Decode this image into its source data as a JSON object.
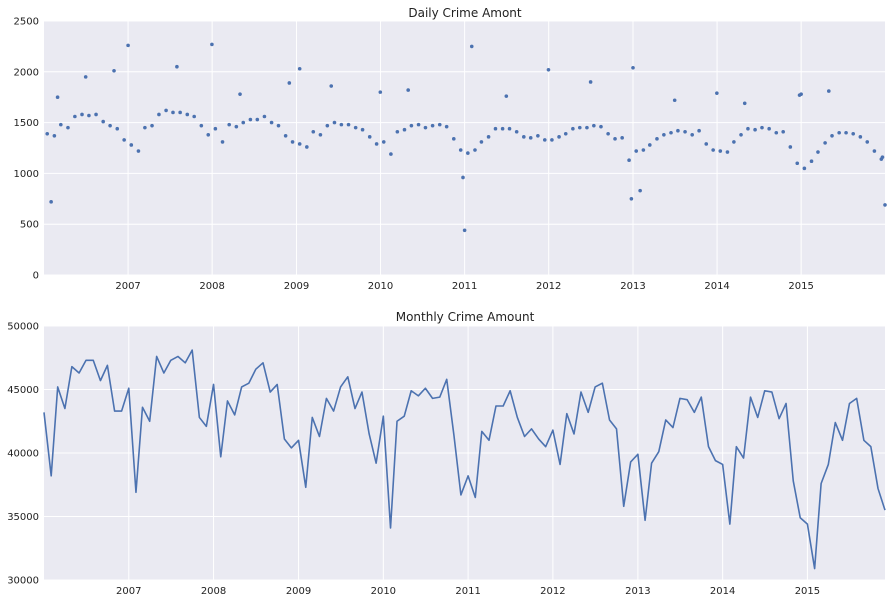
{
  "chart_data": [
    {
      "type": "scatter",
      "title": "Daily Crime Amont",
      "xlabel": "",
      "ylabel": "",
      "xlim": [
        "2006-01-01",
        "2015-12-31"
      ],
      "ylim": [
        0,
        2500
      ],
      "yticks": [
        0,
        500,
        1000,
        1500,
        2000,
        2500
      ],
      "xtick_labels": [
        "2007",
        "2008",
        "2009",
        "2010",
        "2011",
        "2012",
        "2013",
        "2014",
        "2015"
      ],
      "grid": true,
      "point_color": "#4c72b0",
      "x": [
        "2006-01-15",
        "2006-02-15",
        "2006-03-15",
        "2006-04-15",
        "2006-05-15",
        "2006-06-15",
        "2006-07-15",
        "2006-08-15",
        "2006-09-15",
        "2006-10-15",
        "2006-11-15",
        "2006-12-15",
        "2007-01-15",
        "2007-02-15",
        "2007-03-15",
        "2007-04-15",
        "2007-05-15",
        "2007-06-15",
        "2007-07-15",
        "2007-08-15",
        "2007-09-15",
        "2007-10-15",
        "2007-11-15",
        "2007-12-15",
        "2008-01-15",
        "2008-02-15",
        "2008-03-15",
        "2008-04-15",
        "2008-05-15",
        "2008-06-15",
        "2008-07-15",
        "2008-08-15",
        "2008-09-15",
        "2008-10-15",
        "2008-11-15",
        "2008-12-15",
        "2009-01-15",
        "2009-02-15",
        "2009-03-15",
        "2009-04-15",
        "2009-05-15",
        "2009-06-15",
        "2009-07-15",
        "2009-08-15",
        "2009-09-15",
        "2009-10-15",
        "2009-11-15",
        "2009-12-15",
        "2010-01-15",
        "2010-02-15",
        "2010-03-15",
        "2010-04-15",
        "2010-05-15",
        "2010-06-15",
        "2010-07-15",
        "2010-08-15",
        "2010-09-15",
        "2010-10-15",
        "2010-11-15",
        "2010-12-15",
        "2011-01-15",
        "2011-02-15",
        "2011-03-15",
        "2011-04-15",
        "2011-05-15",
        "2011-06-15",
        "2011-07-15",
        "2011-08-15",
        "2011-09-15",
        "2011-10-15",
        "2011-11-15",
        "2011-12-15",
        "2012-01-15",
        "2012-02-15",
        "2012-03-15",
        "2012-04-15",
        "2012-05-15",
        "2012-06-15",
        "2012-07-15",
        "2012-08-15",
        "2012-09-15",
        "2012-10-15",
        "2012-11-15",
        "2012-12-15",
        "2013-01-15",
        "2013-02-15",
        "2013-03-15",
        "2013-04-15",
        "2013-05-15",
        "2013-06-15",
        "2013-07-15",
        "2013-08-15",
        "2013-09-15",
        "2013-10-15",
        "2013-11-15",
        "2013-12-15",
        "2014-01-15",
        "2014-02-15",
        "2014-03-15",
        "2014-04-15",
        "2014-05-15",
        "2014-06-15",
        "2014-07-15",
        "2014-08-15",
        "2014-09-15",
        "2014-10-15",
        "2014-11-15",
        "2014-12-15",
        "2015-01-15",
        "2015-02-15",
        "2015-03-15",
        "2015-04-15",
        "2015-05-15",
        "2015-06-15",
        "2015-07-15",
        "2015-08-15",
        "2015-09-15",
        "2015-10-15",
        "2015-11-15",
        "2015-12-15",
        "2006-03-01",
        "2006-07-01",
        "2006-11-01",
        "2007-01-01",
        "2007-08-01",
        "2007-12-31",
        "2008-05-01",
        "2008-12-01",
        "2009-01-15",
        "2009-06-01",
        "2009-12-31",
        "2010-05-01",
        "2010-12-25",
        "2011-01-01",
        "2011-02-01",
        "2011-07-01",
        "2011-12-31",
        "2012-07-01",
        "2012-12-25",
        "2013-01-01",
        "2013-02-01",
        "2013-07-01",
        "2013-12-31",
        "2014-05-01",
        "2014-12-25",
        "2015-01-01",
        "2015-05-01",
        "2015-12-20",
        "2015-12-31",
        "2006-02-01"
      ],
      "y": [
        1390,
        1370,
        1480,
        1450,
        1560,
        1580,
        1570,
        1580,
        1510,
        1470,
        1440,
        1330,
        1280,
        1220,
        1450,
        1470,
        1580,
        1620,
        1600,
        1600,
        1580,
        1560,
        1470,
        1380,
        1440,
        1310,
        1480,
        1460,
        1500,
        1530,
        1530,
        1560,
        1500,
        1470,
        1370,
        1310,
        1290,
        1260,
        1410,
        1380,
        1470,
        1500,
        1480,
        1480,
        1450,
        1430,
        1360,
        1290,
        1310,
        1190,
        1410,
        1430,
        1470,
        1480,
        1450,
        1470,
        1480,
        1460,
        1340,
        1230,
        1200,
        1230,
        1310,
        1360,
        1440,
        1440,
        1440,
        1410,
        1360,
        1350,
        1370,
        1330,
        1330,
        1360,
        1390,
        1440,
        1450,
        1450,
        1470,
        1460,
        1390,
        1340,
        1350,
        1130,
        1220,
        1230,
        1280,
        1340,
        1380,
        1400,
        1420,
        1410,
        1380,
        1420,
        1290,
        1230,
        1220,
        1210,
        1310,
        1380,
        1440,
        1430,
        1450,
        1440,
        1400,
        1410,
        1260,
        1100,
        1050,
        1120,
        1210,
        1300,
        1370,
        1400,
        1400,
        1390,
        1360,
        1310,
        1220,
        1140,
        1750,
        1950,
        2010,
        2260,
        2050,
        2270,
        1780,
        1890,
        2030,
        1860,
        1800,
        1820,
        960,
        440,
        2250,
        1760,
        2020,
        1900,
        750,
        2040,
        830,
        1720,
        1790,
        1690,
        1770,
        1780,
        1810,
        1160,
        690,
        720
      ]
    },
    {
      "type": "line",
      "title": "Monthly Crime Amount",
      "xlabel": "",
      "ylabel": "",
      "xlim": [
        "2006-01-01",
        "2015-12-01"
      ],
      "ylim": [
        30000,
        50000
      ],
      "yticks": [
        30000,
        35000,
        40000,
        45000,
        50000
      ],
      "xtick_labels": [
        "2007",
        "2008",
        "2009",
        "2010",
        "2011",
        "2012",
        "2013",
        "2014",
        "2015"
      ],
      "grid": true,
      "line_color": "#4c72b0",
      "x": [
        "2006-01-01",
        "2006-02-01",
        "2006-03-01",
        "2006-04-01",
        "2006-05-01",
        "2006-06-01",
        "2006-07-01",
        "2006-08-01",
        "2006-09-01",
        "2006-10-01",
        "2006-11-01",
        "2006-12-01",
        "2007-01-01",
        "2007-02-01",
        "2007-03-01",
        "2007-04-01",
        "2007-05-01",
        "2007-06-01",
        "2007-07-01",
        "2007-08-01",
        "2007-09-01",
        "2007-10-01",
        "2007-11-01",
        "2007-12-01",
        "2008-01-01",
        "2008-02-01",
        "2008-03-01",
        "2008-04-01",
        "2008-05-01",
        "2008-06-01",
        "2008-07-01",
        "2008-08-01",
        "2008-09-01",
        "2008-10-01",
        "2008-11-01",
        "2008-12-01",
        "2009-01-01",
        "2009-02-01",
        "2009-03-01",
        "2009-04-01",
        "2009-05-01",
        "2009-06-01",
        "2009-07-01",
        "2009-08-01",
        "2009-09-01",
        "2009-10-01",
        "2009-11-01",
        "2009-12-01",
        "2010-01-01",
        "2010-02-01",
        "2010-03-01",
        "2010-04-01",
        "2010-05-01",
        "2010-06-01",
        "2010-07-01",
        "2010-08-01",
        "2010-09-01",
        "2010-10-01",
        "2010-11-01",
        "2010-12-01",
        "2011-01-01",
        "2011-02-01",
        "2011-03-01",
        "2011-04-01",
        "2011-05-01",
        "2011-06-01",
        "2011-07-01",
        "2011-08-01",
        "2011-09-01",
        "2011-10-01",
        "2011-11-01",
        "2011-12-01",
        "2012-01-01",
        "2012-02-01",
        "2012-03-01",
        "2012-04-01",
        "2012-05-01",
        "2012-06-01",
        "2012-07-01",
        "2012-08-01",
        "2012-09-01",
        "2012-10-01",
        "2012-11-01",
        "2012-12-01",
        "2013-01-01",
        "2013-02-01",
        "2013-03-01",
        "2013-04-01",
        "2013-05-01",
        "2013-06-01",
        "2013-07-01",
        "2013-08-01",
        "2013-09-01",
        "2013-10-01",
        "2013-11-01",
        "2013-12-01",
        "2014-01-01",
        "2014-02-01",
        "2014-03-01",
        "2014-04-01",
        "2014-05-01",
        "2014-06-01",
        "2014-07-01",
        "2014-08-01",
        "2014-09-01",
        "2014-10-01",
        "2014-11-01",
        "2014-12-01",
        "2015-01-01",
        "2015-02-01",
        "2015-03-01",
        "2015-04-01",
        "2015-05-01",
        "2015-06-01",
        "2015-07-01",
        "2015-08-01",
        "2015-09-01",
        "2015-10-01",
        "2015-11-01",
        "2015-12-01"
      ],
      "y": [
        43200,
        38200,
        45200,
        43500,
        46800,
        46300,
        47300,
        47300,
        45700,
        46900,
        43300,
        43300,
        45100,
        36900,
        43600,
        42500,
        47600,
        46300,
        47300,
        47600,
        47100,
        48100,
        42800,
        42100,
        45400,
        39700,
        44100,
        43000,
        45200,
        45500,
        46600,
        47100,
        44800,
        45400,
        41100,
        40400,
        41000,
        37300,
        42800,
        41300,
        44300,
        43300,
        45200,
        46000,
        43500,
        44800,
        41500,
        39200,
        42900,
        34100,
        42500,
        42900,
        44900,
        44500,
        45100,
        44300,
        44400,
        45800,
        41400,
        36700,
        38200,
        36500,
        41700,
        41000,
        43700,
        43700,
        44900,
        42800,
        41300,
        41900,
        41100,
        40500,
        41800,
        39100,
        43100,
        41500,
        44800,
        43200,
        45200,
        45500,
        42600,
        41900,
        35800,
        39300,
        39900,
        34700,
        39200,
        40100,
        42600,
        42000,
        44300,
        44200,
        43200,
        44400,
        40500,
        39400,
        39100,
        34400,
        40500,
        39600,
        44400,
        42800,
        44900,
        44800,
        42700,
        43900,
        37800,
        34900,
        34400,
        30900,
        37600,
        39100,
        42400,
        41000,
        43900,
        44300,
        41000,
        40500,
        37200,
        35500
      ]
    }
  ]
}
